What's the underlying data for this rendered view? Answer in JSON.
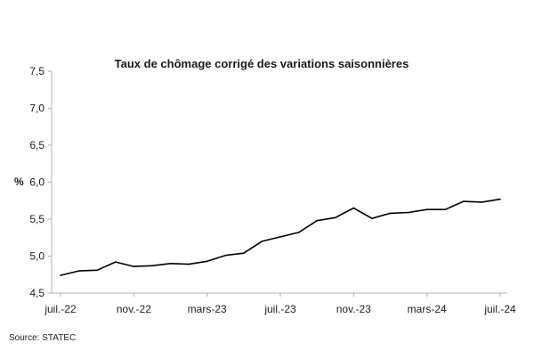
{
  "chart_data": {
    "type": "line",
    "title": "Taux de chômage corrigé des variations saisonnières",
    "ylabel": "%",
    "xlabel": "",
    "ylim": [
      4.5,
      7.5
    ],
    "yticks": [
      "4,5",
      "5,0",
      "5,5",
      "6,0",
      "6,5",
      "7,0",
      "7,5"
    ],
    "ytick_values": [
      4.5,
      5.0,
      5.5,
      6.0,
      6.5,
      7.0,
      7.5
    ],
    "x_tick_labels": [
      "juil.-22",
      "nov.-22",
      "mars-23",
      "juil.-23",
      "nov.-23",
      "mars-24",
      "juil.-24"
    ],
    "x": [
      "2022-07",
      "2022-08",
      "2022-09",
      "2022-10",
      "2022-11",
      "2022-12",
      "2023-01",
      "2023-02",
      "2023-03",
      "2023-04",
      "2023-05",
      "2023-06",
      "2023-07",
      "2023-08",
      "2023-09",
      "2023-10",
      "2023-11",
      "2023-12",
      "2024-01",
      "2024-02",
      "2024-03",
      "2024-04",
      "2024-05",
      "2024-06",
      "2024-07"
    ],
    "series": [
      {
        "name": "",
        "color": "#000000",
        "values": [
          4.74,
          4.8,
          4.81,
          4.92,
          4.86,
          4.87,
          4.9,
          4.89,
          4.93,
          5.01,
          5.04,
          5.2,
          5.26,
          5.32,
          5.48,
          5.52,
          5.65,
          5.51,
          5.58,
          5.59,
          5.63,
          5.63,
          5.74,
          5.73,
          5.77
        ]
      }
    ],
    "grid": false,
    "legend": "none"
  },
  "source": "Source: STATEC"
}
